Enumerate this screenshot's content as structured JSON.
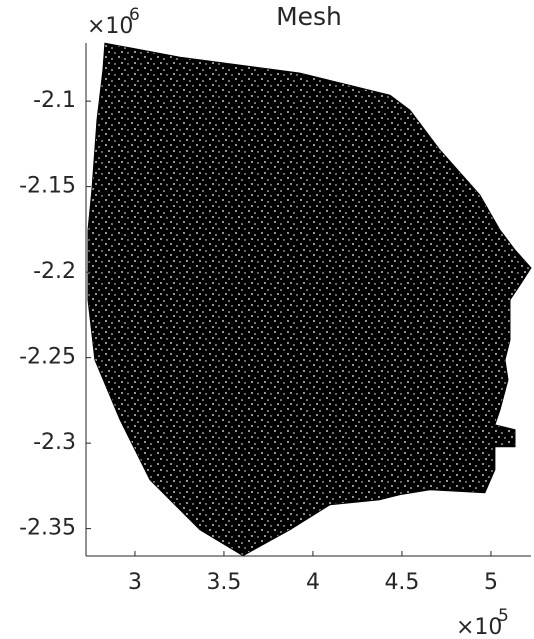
{
  "chart_data": {
    "type": "mesh",
    "title": "Mesh",
    "color": "#000000",
    "x": [
      2.831,
      3.253,
      3.927,
      4.433,
      4.545,
      4.713,
      4.938,
      5.051,
      5.135,
      5.225,
      5.163,
      5.107,
      5.107,
      5.079,
      5.096,
      5.051,
      5.022,
      5.135,
      5.135,
      5.022,
      5.022,
      4.966,
      4.657,
      4.489,
      4.376,
      4.096,
      3.871,
      3.607,
      3.365,
      3.084,
      2.916,
      2.775,
      2.736,
      2.736,
      2.758,
      2.787,
      2.82
    ],
    "y": [
      -2.0661,
      -2.0743,
      -2.0836,
      -2.0965,
      -2.1053,
      -2.1286,
      -2.1549,
      -2.1754,
      -2.187,
      -2.1975,
      -2.2075,
      -2.2162,
      -2.2396,
      -2.2513,
      -2.263,
      -2.2805,
      -2.2893,
      -2.2922,
      -2.3021,
      -2.3021,
      -2.3155,
      -2.329,
      -2.3272,
      -2.3301,
      -2.3331,
      -2.336,
      -2.3506,
      -2.3658,
      -2.3506,
      -2.3214,
      -2.2863,
      -2.2513,
      -2.2162,
      -2.1754,
      -2.152,
      -2.1111,
      -2.0819
    ],
    "xlim": [
      2.725,
      5.225
    ],
    "ylim": [
      -2.366,
      -2.066
    ],
    "xticks": [
      3,
      3.5,
      4,
      4.5,
      5
    ],
    "yticks": [
      -2.35,
      -2.3,
      -2.25,
      -2.2,
      -2.15,
      -2.1
    ],
    "x_exponent": {
      "base": "×10",
      "power": "5"
    },
    "y_exponent": {
      "base": "×10",
      "power": "6"
    }
  }
}
